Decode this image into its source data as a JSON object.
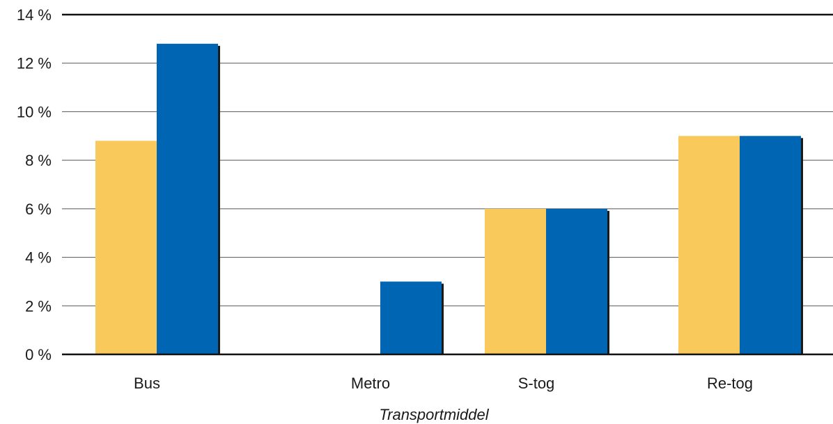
{
  "chart_data": {
    "type": "bar",
    "categories": [
      "Bus",
      "Metro",
      "S-tog",
      "Re-tog"
    ],
    "series": [
      {
        "color": "#F9C95B",
        "values": [
          8.8,
          0,
          6.0,
          9.0
        ]
      },
      {
        "color": "#0066B3",
        "values": [
          12.8,
          3.0,
          6.0,
          9.0
        ]
      }
    ],
    "xlabel": "Transportmiddel",
    "ylabel": "",
    "ylim": [
      0,
      14
    ],
    "yticks": [
      0,
      2,
      4,
      6,
      8,
      10,
      12,
      14
    ],
    "ytick_labels": [
      "0 %",
      "2 %",
      "4 %",
      "6 %",
      "8 %",
      "10 %",
      "12 %",
      "14 %"
    ],
    "grid": true,
    "colors": {
      "gridline": "#555555",
      "axis": "#111111",
      "shadow": "#1a1a1a"
    }
  }
}
